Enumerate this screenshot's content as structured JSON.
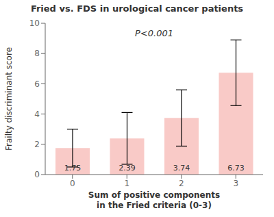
{
  "chart_data": {
    "type": "bar",
    "title": "Fried vs. FDS in urological cancer patients",
    "xlabel": "Sum of positive components\nin the Fried criteria (0-3)",
    "ylabel": "Frailty discriminant score",
    "categories": [
      "0",
      "1",
      "2",
      "3"
    ],
    "values": [
      1.75,
      2.39,
      3.74,
      6.73
    ],
    "errors": [
      1.25,
      1.71,
      1.86,
      2.17
    ],
    "color": "#f9cac7",
    "ylim": [
      0,
      10
    ],
    "yticks": [
      0,
      2,
      4,
      6,
      8,
      10
    ],
    "annotation": "P<0.001",
    "data_labels": true,
    "grid": false
  }
}
